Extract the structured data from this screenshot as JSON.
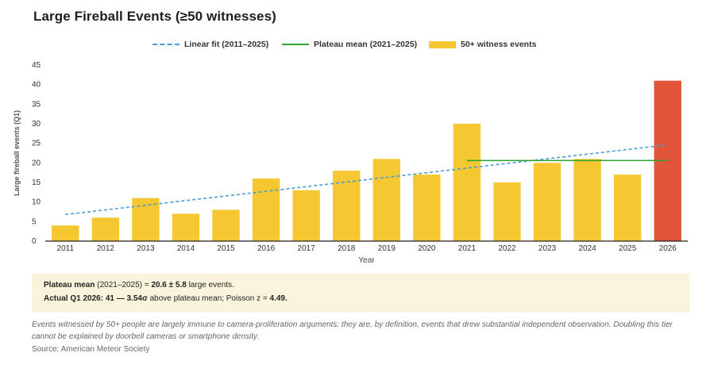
{
  "header": {
    "title": "Large Fireball Events (≥50 witnesses)"
  },
  "legend": {
    "linear_fit": "Linear fit (2011–2025)",
    "plateau": "Plateau mean (2021–2025)",
    "bars": "50+ witness events"
  },
  "colors": {
    "bar": "#f5c832",
    "highlight_bar": "#e2553a",
    "fit_line": "#4a9bd6",
    "plateau_line": "#2ca02c",
    "stats_bg": "#fbf4dc"
  },
  "chart_data": {
    "type": "bar",
    "title": "Large Fireball Events (≥50 witnesses)",
    "xlabel": "Year",
    "ylabel": "Large fireball events (Q1)",
    "ylim": [
      0,
      45
    ],
    "yticks": [
      0,
      5,
      10,
      15,
      20,
      25,
      30,
      35,
      40,
      45
    ],
    "categories": [
      "2011",
      "2012",
      "2013",
      "2014",
      "2015",
      "2016",
      "2017",
      "2018",
      "2019",
      "2020",
      "2021",
      "2022",
      "2023",
      "2024",
      "2025",
      "2026"
    ],
    "series": [
      {
        "name": "50+ witness events",
        "values": [
          4,
          6,
          11,
          7,
          8,
          16,
          13,
          18,
          21,
          17,
          30,
          15,
          20,
          21,
          17,
          41
        ],
        "highlight_index": 15
      }
    ],
    "linear_fit": {
      "name": "Linear fit (2011–2025)",
      "from_year": "2011",
      "to_year": "2026",
      "y_start": 6.8,
      "y_end": 24.6
    },
    "plateau_mean": {
      "name": "Plateau mean (2021–2025)",
      "from_year": "2021",
      "to_year": "2026",
      "value": 20.6
    },
    "grid": false,
    "legend_position": "top-center"
  },
  "stats": {
    "line1_label": "Plateau mean",
    "line1_range": " (2021–2025) = ",
    "line1_value": "20.6 ± 5.8",
    "line1_tail": " large events.",
    "line2_bold": "Actual Q1 2026: 41 — 3.54σ",
    "line2_mid": " above plateau mean; Poisson z = ",
    "line2_z": "4.49."
  },
  "footer": {
    "note": "Events witnessed by 50+ people are largely immune to camera-proliferation arguments: they are, by definition, events that drew substantial independent observation. Doubling this tier cannot be explained by doorbell cameras or smartphone density.",
    "source": "Source: American Meteor Society"
  }
}
